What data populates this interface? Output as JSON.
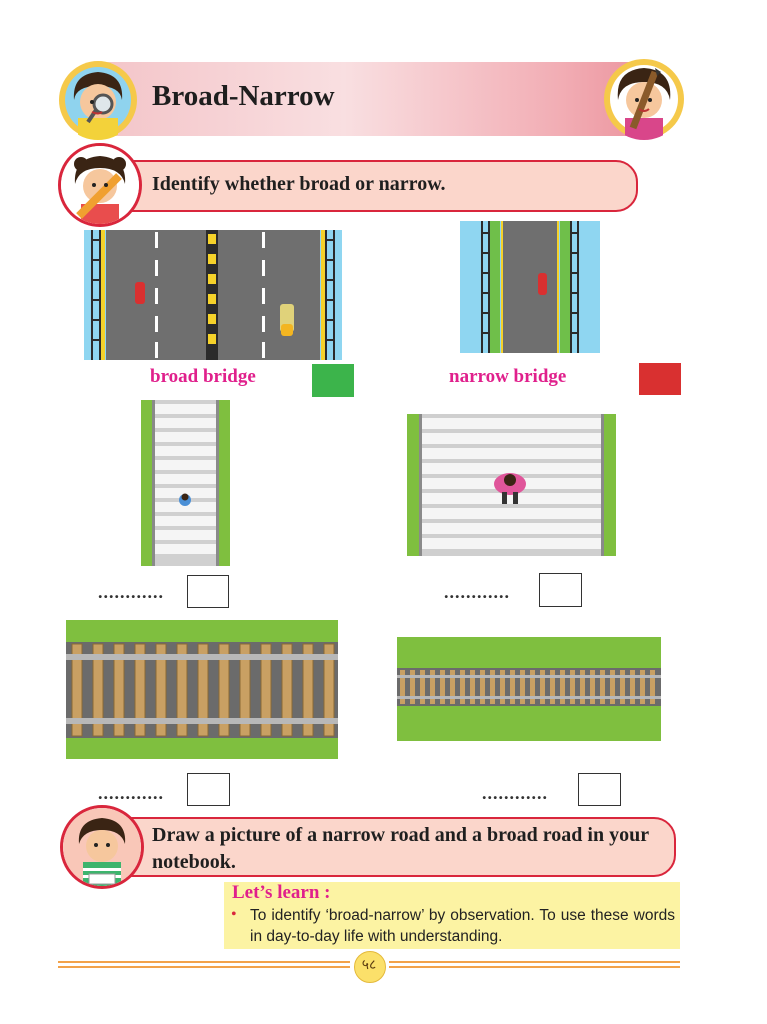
{
  "header": {
    "title": "Broad-Narrow"
  },
  "activity1": {
    "instruction": "Identify whether broad or narrow.",
    "items": [
      {
        "caption": "broad bridge",
        "answer_color": "#3cb44b"
      },
      {
        "caption": "narrow bridge",
        "answer_color": "#d93030"
      },
      {
        "dots": "............"
      },
      {
        "dots": "............"
      },
      {
        "dots": "............"
      },
      {
        "dots": "............"
      }
    ]
  },
  "activity2": {
    "instruction": "Draw a picture of a narrow road and a broad road in your notebook."
  },
  "lets_learn": {
    "title": "Let’s learn :",
    "text": "To identify ‘broad-narrow’ by observation. To use these words in day-to-day life with understanding."
  },
  "footer": {
    "page_number": "५८"
  },
  "colors": {
    "accent_red": "#d9263c",
    "caption_pink": "#e0208c",
    "instruction_bg": "#fbd6cb",
    "learn_bg": "#fcf3a3"
  }
}
